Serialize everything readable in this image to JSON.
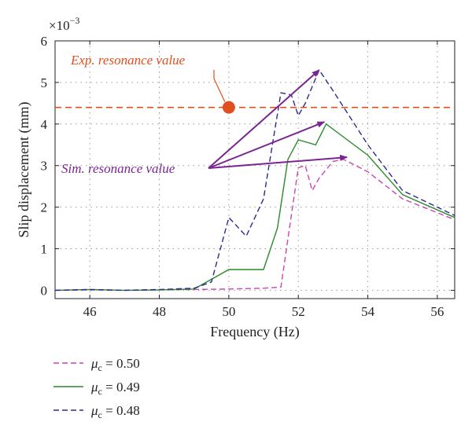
{
  "chart_data": {
    "type": "line",
    "xlabel": "Frequency (Hz)",
    "ylabel": "Slip displacement (mm)",
    "y_exponent_prefix": "×10",
    "y_exponent_power": "−3",
    "xlim": [
      45,
      56.5
    ],
    "ylim": [
      -0.2,
      6
    ],
    "xticks": [
      46,
      48,
      50,
      52,
      54,
      56
    ],
    "yticks": [
      0,
      1,
      2,
      3,
      4,
      5,
      6
    ],
    "grid": "dotted",
    "legend_position": "below",
    "series": [
      {
        "name": "μc = 0.50",
        "legend_mu": "μ",
        "legend_sub": "c",
        "legend_value": " = 0.50",
        "color": "#cc44b4",
        "style": "dashed",
        "x": [
          45,
          46,
          47,
          48,
          49,
          50,
          51,
          51.5,
          52,
          52.2,
          52.4,
          52.6,
          53,
          53.3,
          54,
          55,
          56.5
        ],
        "y": [
          0,
          0.01,
          0,
          0.01,
          0.02,
          0.03,
          0.05,
          0.08,
          2.95,
          3.0,
          2.4,
          2.7,
          3.1,
          3.15,
          2.85,
          2.2,
          1.7
        ]
      },
      {
        "name": "μc = 0.49",
        "legend_mu": "μ",
        "legend_sub": "c",
        "legend_value": " = 0.49",
        "color": "#2a8a2a",
        "style": "solid",
        "x": [
          45,
          46,
          47,
          48,
          49,
          50,
          51,
          51.4,
          51.7,
          52,
          52.5,
          52.8,
          53.2,
          54,
          55,
          56.5
        ],
        "y": [
          0,
          0.02,
          0,
          0.01,
          0.03,
          0.5,
          0.5,
          1.5,
          3.15,
          3.62,
          3.5,
          4.0,
          3.75,
          3.25,
          2.3,
          1.75
        ]
      },
      {
        "name": "μc = 0.48",
        "legend_mu": "μ",
        "legend_sub": "c",
        "legend_value": " = 0.48",
        "color": "#2b2b8f",
        "style": "dashed",
        "x": [
          45,
          46,
          47,
          48,
          49,
          49.5,
          50,
          50.5,
          51,
          51.5,
          51.8,
          52,
          52.2,
          52.6,
          53,
          54,
          55,
          56.5
        ],
        "y": [
          0,
          0.02,
          0,
          0.02,
          0.05,
          0.2,
          1.75,
          1.3,
          2.2,
          4.75,
          4.7,
          4.2,
          4.5,
          5.3,
          4.8,
          3.5,
          2.4,
          1.8
        ]
      }
    ],
    "annotations": {
      "exp_label": "Exp. resonance value",
      "exp_value": 4.4,
      "exp_point_x": 50,
      "exp_color": "#e0501e",
      "sim_label": "Sim. resonance value",
      "sim_color": "#7a2590",
      "sim_arrow_targets": [
        {
          "x": 52.6,
          "y": 5.3
        },
        {
          "x": 52.75,
          "y": 4.05
        },
        {
          "x": 53.4,
          "y": 3.2
        }
      ]
    }
  }
}
